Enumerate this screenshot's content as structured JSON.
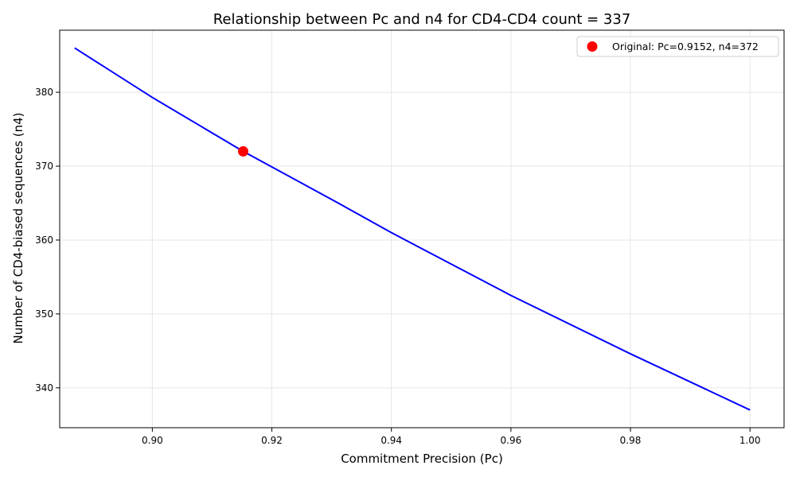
{
  "chart_data": {
    "type": "line",
    "title": "Relationship between Pc and n4 for CD4-CD4 count = 337",
    "xlabel": "Commitment Precision (Pc)",
    "ylabel": "Number of CD4-biased sequences (n4)",
    "xlim": [
      0.8845,
      1.0057
    ],
    "ylim": [
      334.6,
      388.4
    ],
    "xticks": [
      0.9,
      0.92,
      0.94,
      0.96,
      0.98,
      1.0
    ],
    "xtick_labels": [
      "0.90",
      "0.92",
      "0.94",
      "0.96",
      "0.98",
      "1.00"
    ],
    "yticks": [
      340,
      350,
      360,
      370,
      380
    ],
    "ytick_labels": [
      "340",
      "350",
      "360",
      "370",
      "380"
    ],
    "grid": true,
    "series": [
      {
        "kind": "line",
        "color": "#0000ff",
        "x": [
          0.887,
          0.9,
          0.9152,
          0.93,
          0.94,
          0.96,
          0.98,
          1.0
        ],
        "y": [
          386.0,
          379.3,
          372.0,
          365.5,
          361.0,
          352.5,
          344.6,
          337.0
        ]
      },
      {
        "kind": "point",
        "name": "Original: Pc=0.9152, n4=372",
        "color": "#ff0000",
        "x": [
          0.9152
        ],
        "y": [
          372
        ]
      }
    ],
    "legend": {
      "placement": "top-right",
      "entries": [
        "Original: Pc=0.9152, n4=372"
      ]
    }
  }
}
